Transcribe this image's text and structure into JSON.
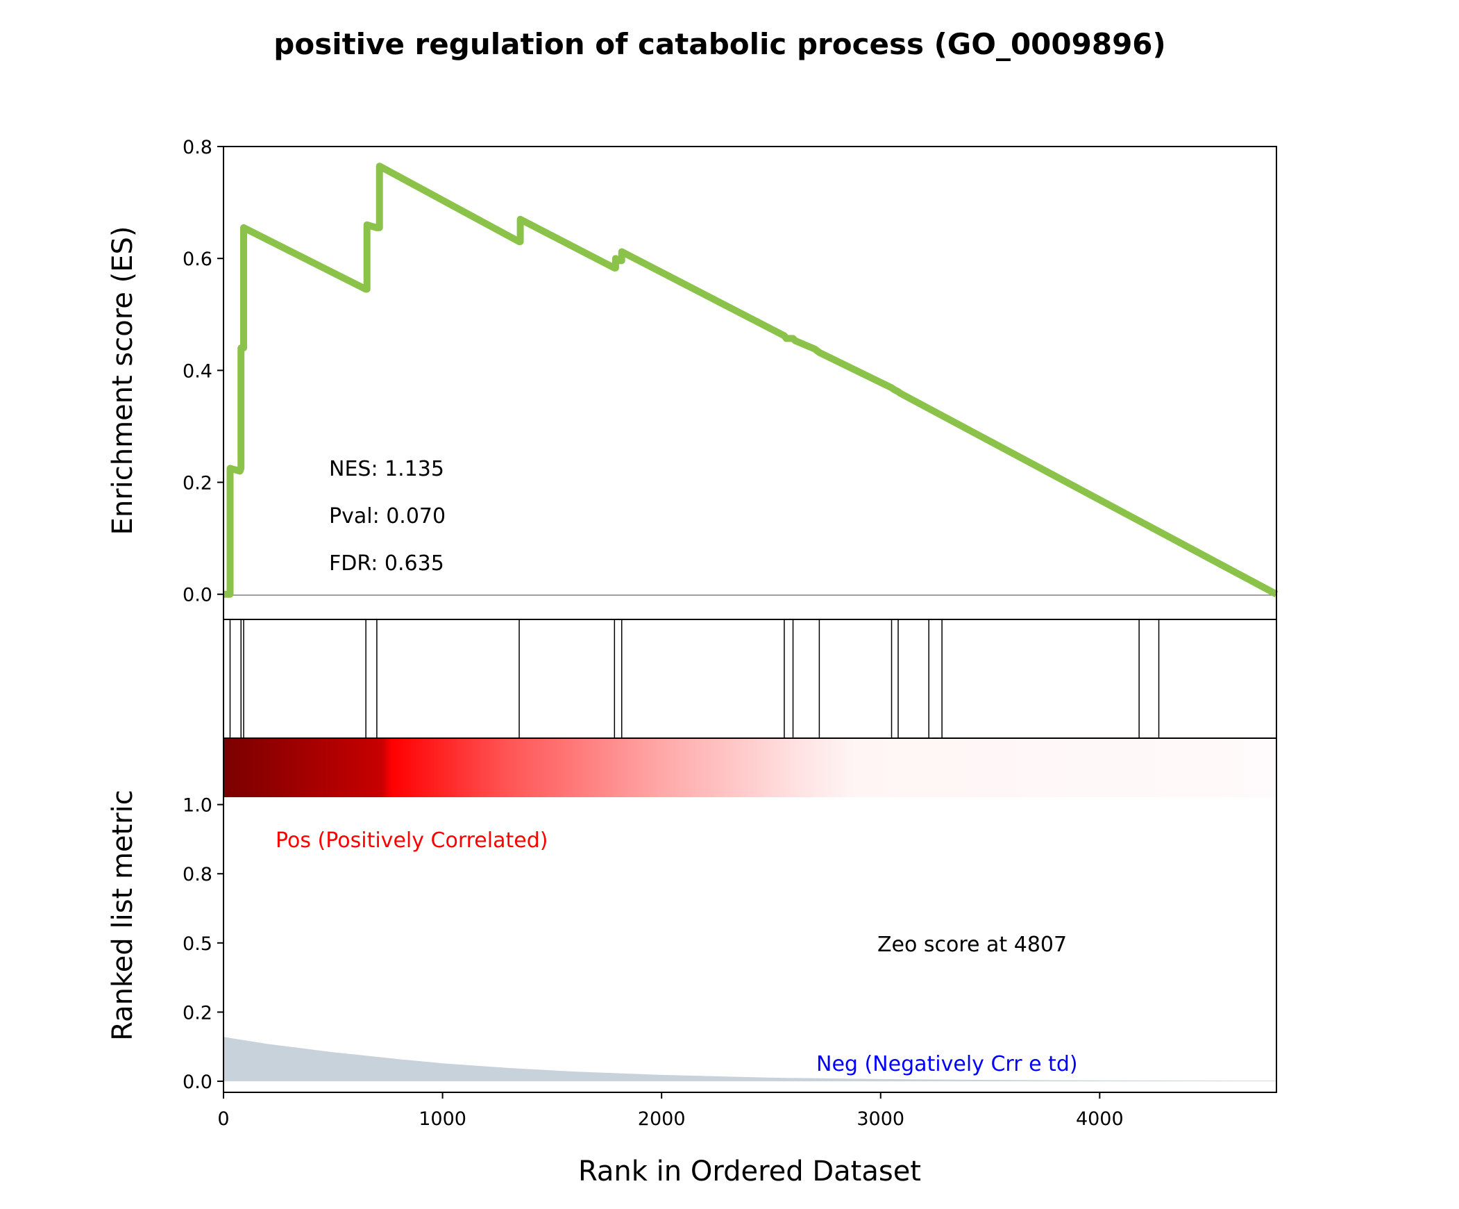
{
  "chart_data": {
    "type": "line",
    "title": "positive regulation of catabolic process (GO_0009896)",
    "xlabel": "Rank in Ordered Dataset",
    "xlim": [
      0,
      4807
    ],
    "x_ticks": [
      0,
      1000,
      2000,
      3000,
      4000
    ],
    "es_panel": {
      "ylabel": "Enrichment score (ES)",
      "ylim": [
        -0.045,
        0.8
      ],
      "y_ticks": [
        "0.0",
        "0.2",
        "0.4",
        "0.6",
        "0.8"
      ],
      "line_color": "#8bc34a",
      "series": [
        {
          "x": [
            0,
            30,
            30,
            75,
            75,
            80,
            80,
            92,
            92,
            650,
            650,
            655,
            655,
            700,
            700,
            712,
            712,
            1350,
            1350,
            1355,
            1355,
            1785,
            1785,
            1790,
            1790,
            1810,
            1810,
            1818,
            1818,
            2560,
            2570,
            2600,
            2610,
            2700,
            2720,
            3050,
            3060,
            3080,
            3090,
            4807
          ],
          "y": [
            0,
            0,
            0.225,
            0.22,
            0.22,
            0.225,
            0.44,
            0.44,
            0.655,
            0.545,
            0.545,
            0.545,
            0.66,
            0.655,
            0.655,
            0.655,
            0.765,
            0.63,
            0.63,
            0.63,
            0.67,
            0.583,
            0.583,
            0.583,
            0.6,
            0.596,
            0.596,
            0.596,
            0.612,
            0.462,
            0.457,
            0.457,
            0.453,
            0.438,
            0.432,
            0.369,
            0.366,
            0.362,
            0.359,
            0.0
          ]
        }
      ]
    },
    "hits_panel": {
      "hit_ranks": [
        30,
        80,
        92,
        650,
        700,
        1350,
        1785,
        1818,
        2560,
        2600,
        2720,
        3050,
        3080,
        3220,
        3280,
        4180,
        4270
      ]
    },
    "metric_panel": {
      "ylabel": "Ranked list metric",
      "y_ticks": [
        "0.0",
        "0.2",
        "0.5",
        "0.8",
        "1.0"
      ],
      "ylim": [
        -0.04,
        1.24
      ],
      "metric_x": [
        0,
        200,
        500,
        800,
        1000,
        1300,
        1600,
        2000,
        2500,
        3000,
        3500,
        4000,
        4807
      ],
      "metric_y": [
        0.16,
        0.135,
        0.105,
        0.08,
        0.065,
        0.048,
        0.035,
        0.023,
        0.013,
        0.008,
        0.005,
        0.003,
        0.002
      ],
      "fill_color": "#c8d2da",
      "pos_label": "Pos (Positively Correlated)",
      "neg_label": "Neg (Negatively Crr  e td)",
      "zero_label": "Zeo score at 4807",
      "pos_color": "#ff0000",
      "neg_color": "#0000ff"
    },
    "stats": {
      "nes": "NES: 1.135",
      "pval": "Pval: 0.070",
      "fdr": "FDR: 0.635"
    }
  }
}
